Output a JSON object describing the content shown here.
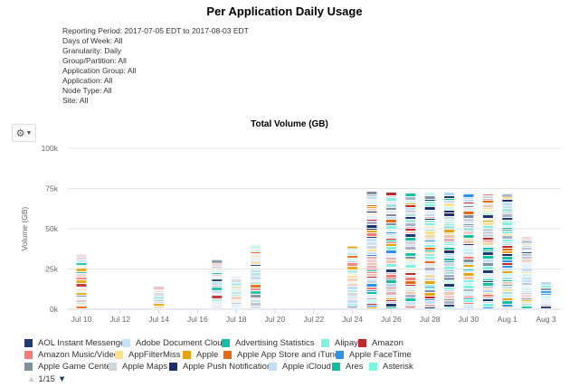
{
  "title": "Per Application Daily Usage",
  "filters": [
    "Reporting Period: 2017-07-05 EDT to 2017-08-03 EDT",
    "Days of Week: All",
    "Granularity: Daily",
    "Group/Partition: All",
    "Application Group: All",
    "Application: All",
    "Node Type: All",
    "Site: All"
  ],
  "toolbar": {
    "gear_icon": "gear-icon",
    "dropdown_icon": "caret-down-icon"
  },
  "chart_data": {
    "type": "bar",
    "stacked": true,
    "title": "Total Volume (GB)",
    "xlabel": "",
    "ylabel": "Volume (GB)",
    "ylim": [
      0,
      100000
    ],
    "yticks": [
      "0k",
      "25k",
      "50k",
      "75k",
      "100k"
    ],
    "xticks": [
      "Jul 10",
      "Jul 12",
      "Jul 14",
      "Jul 16",
      "Jul 18",
      "Jul 20",
      "Jul 22",
      "Jul 24",
      "Jul 26",
      "Jul 28",
      "Jul 30",
      "Aug 1",
      "Aug 3"
    ],
    "grid": true,
    "legend_position": "bottom",
    "categories": [
      "Jul 10",
      "Jul 14",
      "Jul 17",
      "Jul 18",
      "Jul 19",
      "Jul 24",
      "Jul 25",
      "Jul 26",
      "Jul 27",
      "Jul 28",
      "Jul 29",
      "Jul 30",
      "Jul 31",
      "Aug 1",
      "Aug 2",
      "Aug 3"
    ],
    "values": [
      34000,
      14000,
      30500,
      21000,
      40000,
      39000,
      74000,
      73000,
      72000,
      72500,
      72500,
      72000,
      72000,
      71500,
      45000,
      17500
    ],
    "legend": [
      {
        "name": "AOL Instant Messenger",
        "color": "#1f3a73"
      },
      {
        "name": "Adobe Document Cloud",
        "color": "#c6e2fb"
      },
      {
        "name": "Advertising Statistics",
        "color": "#14bfa6"
      },
      {
        "name": "Alipay",
        "color": "#7ff3df"
      },
      {
        "name": "Amazon",
        "color": "#c0282d"
      },
      {
        "name": "Amazon Music/Video",
        "color": "#f77b72"
      },
      {
        "name": "AppFilterMiss",
        "color": "#ffe08c"
      },
      {
        "name": "Apple",
        "color": "#e5a50a"
      },
      {
        "name": "Apple App Store and iTunes",
        "color": "#e8670f"
      },
      {
        "name": "Apple FaceTime",
        "color": "#2b92ee"
      },
      {
        "name": "Apple Game Center",
        "color": "#7e8f9e"
      },
      {
        "name": "Apple Maps",
        "color": "#cfd6dc"
      },
      {
        "name": "Apple Push Notification",
        "color": "#1b2f6a"
      },
      {
        "name": "Apple iCloud",
        "color": "#c0defa"
      },
      {
        "name": "Ares",
        "color": "#0fbfa0"
      },
      {
        "name": "Asterisk",
        "color": "#7ef5e0"
      }
    ]
  },
  "pager": {
    "text": "1/15",
    "up_icon": "triangle-up-icon",
    "down_icon": "triangle-down-icon"
  }
}
